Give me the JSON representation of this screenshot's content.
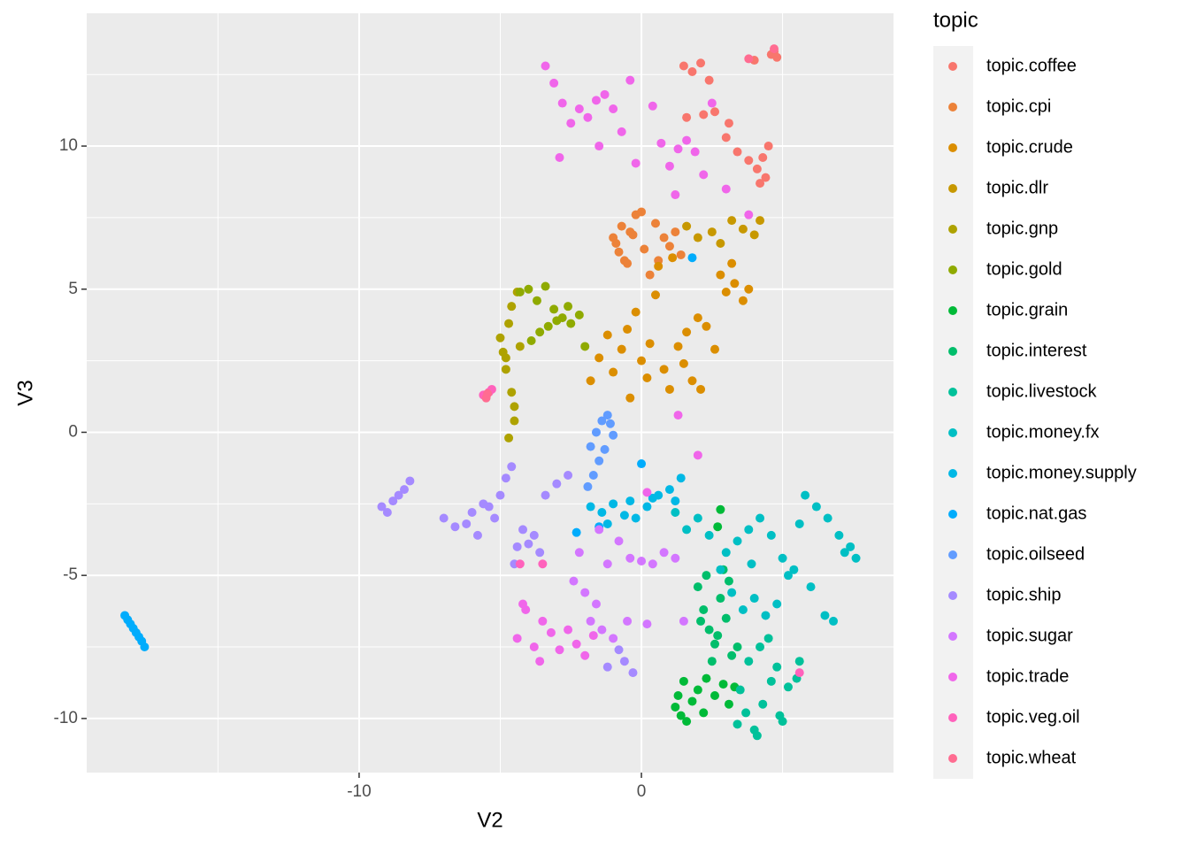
{
  "chart_data": {
    "type": "scatter",
    "x_label": "V2",
    "y_label": "V3",
    "legend_title": "topic",
    "xlim": [
      -19.65,
      8.93
    ],
    "ylim": [
      -11.89,
      14.64
    ],
    "xticks": [
      -10,
      0
    ],
    "yticks": [
      -10,
      -5,
      0,
      5,
      10
    ],
    "xminor": [
      -15,
      -5,
      5
    ],
    "yminor": [
      -7.5,
      -2.5,
      2.5,
      7.5,
      12.5
    ],
    "grid": true,
    "legend": "right",
    "series": [
      {
        "name": "topic.coffee",
        "color": "#F8766D",
        "x": [
          4.6,
          4.7,
          4.8,
          4.0,
          1.5,
          1.8,
          2.1,
          2.4,
          1.6,
          2.2,
          3.0,
          3.4,
          3.8,
          4.1,
          4.3,
          4.5,
          4.2,
          2.6,
          3.1,
          4.4
        ],
        "y": [
          13.2,
          13.3,
          13.1,
          13.0,
          12.8,
          12.6,
          12.9,
          12.3,
          11.0,
          11.1,
          10.3,
          9.8,
          9.5,
          9.2,
          9.6,
          10.0,
          8.7,
          11.2,
          10.8,
          8.9
        ]
      },
      {
        "name": "topic.cpi",
        "color": "#EC8239",
        "x": [
          -1.0,
          -0.8,
          -0.6,
          -0.4,
          -0.2,
          0.0,
          -0.9,
          -0.5,
          -0.3,
          0.5,
          0.8,
          1.0,
          1.2,
          0.6,
          -0.7,
          0.1,
          1.4,
          0.3
        ],
        "y": [
          6.8,
          6.3,
          6.0,
          7.0,
          7.6,
          7.7,
          6.6,
          5.9,
          6.9,
          7.3,
          6.8,
          6.5,
          7.0,
          6.0,
          7.2,
          6.4,
          6.2,
          5.5
        ]
      },
      {
        "name": "topic.crude",
        "color": "#DB8E00",
        "x": [
          -1.8,
          -1.5,
          -1.2,
          -1.0,
          -0.7,
          -0.5,
          -0.2,
          0.0,
          0.3,
          0.5,
          0.8,
          1.0,
          1.3,
          1.5,
          1.8,
          2.0,
          2.3,
          2.6,
          2.8,
          3.0,
          3.3,
          3.6,
          3.8,
          0.6,
          1.1,
          2.1,
          3.2,
          -0.4,
          0.2,
          1.6
        ],
        "y": [
          1.8,
          2.6,
          3.4,
          2.1,
          2.9,
          3.6,
          4.2,
          2.5,
          3.1,
          4.8,
          2.2,
          1.5,
          3.0,
          2.4,
          1.8,
          4.0,
          3.7,
          2.9,
          5.5,
          4.9,
          5.2,
          4.6,
          5.0,
          5.8,
          6.1,
          1.5,
          5.9,
          1.2,
          1.9,
          3.5
        ]
      },
      {
        "name": "topic.dlr",
        "color": "#C79800",
        "x": [
          1.6,
          2.0,
          2.5,
          2.8,
          3.2,
          3.6,
          4.0,
          4.2
        ],
        "y": [
          7.2,
          6.8,
          7.0,
          6.6,
          7.4,
          7.1,
          6.9,
          7.4
        ]
      },
      {
        "name": "topic.gnp",
        "color": "#AEA200",
        "x": [
          -5.0,
          -4.9,
          -4.8,
          -4.7,
          -4.6,
          -4.5,
          -4.6,
          -4.7,
          -4.5,
          -4.4,
          -4.8,
          -4.3
        ],
        "y": [
          3.3,
          2.8,
          2.2,
          3.8,
          4.4,
          0.9,
          1.4,
          -0.2,
          0.4,
          4.9,
          2.6,
          3.0
        ]
      },
      {
        "name": "topic.gold",
        "color": "#8FAA00",
        "x": [
          -4.3,
          -4.0,
          -3.7,
          -3.4,
          -3.1,
          -2.8,
          -2.5,
          -2.2,
          -3.6,
          -3.0,
          -2.6,
          -3.9,
          -2.0,
          -3.3
        ],
        "y": [
          4.9,
          5.0,
          4.6,
          5.1,
          4.3,
          4.0,
          3.8,
          4.1,
          3.5,
          3.9,
          4.4,
          3.2,
          3.0,
          3.7
        ]
      },
      {
        "name": "topic.grain",
        "color": "#00BA38",
        "x": [
          1.2,
          1.4,
          1.6,
          1.8,
          2.0,
          2.3,
          2.6,
          2.9,
          3.1,
          1.5,
          2.2,
          1.3,
          2.8,
          2.7,
          3.3
        ],
        "y": [
          -9.6,
          -9.9,
          -10.1,
          -9.4,
          -9.0,
          -8.6,
          -9.2,
          -8.8,
          -9.5,
          -8.7,
          -9.8,
          -9.2,
          -2.7,
          -3.3,
          -8.9
        ]
      },
      {
        "name": "topic.interest",
        "color": "#00BE6B",
        "x": [
          2.0,
          2.2,
          2.4,
          2.6,
          2.8,
          3.0,
          3.2,
          2.3,
          2.7,
          3.1,
          2.5,
          3.4,
          2.1,
          2.9
        ],
        "y": [
          -5.4,
          -6.2,
          -6.9,
          -7.4,
          -5.8,
          -6.5,
          -7.8,
          -5.0,
          -7.1,
          -5.2,
          -8.0,
          -7.5,
          -6.6,
          -4.8
        ]
      },
      {
        "name": "topic.livestock",
        "color": "#00C19A",
        "x": [
          3.4,
          3.7,
          4.0,
          4.3,
          4.6,
          4.9,
          5.2,
          5.5,
          3.8,
          4.2,
          4.5,
          4.8,
          5.0,
          5.6,
          3.5,
          4.1
        ],
        "y": [
          -10.2,
          -9.8,
          -10.4,
          -9.5,
          -8.7,
          -9.9,
          -8.9,
          -8.6,
          -8.0,
          -7.5,
          -7.2,
          -8.2,
          -10.1,
          -8.0,
          -9.0,
          -10.6
        ]
      },
      {
        "name": "topic.money.fx",
        "color": "#00BFC4",
        "x": [
          1.2,
          1.6,
          2.0,
          2.4,
          3.0,
          3.4,
          3.8,
          4.2,
          4.6,
          5.0,
          5.4,
          5.8,
          6.2,
          6.6,
          7.0,
          7.4,
          7.6,
          3.2,
          3.6,
          4.0,
          4.4,
          4.8,
          5.2,
          6.0,
          6.5,
          2.8,
          3.9,
          5.6,
          7.2,
          6.8
        ],
        "y": [
          -2.8,
          -3.4,
          -3.0,
          -3.6,
          -4.2,
          -3.8,
          -3.4,
          -3.0,
          -3.6,
          -4.4,
          -4.8,
          -2.2,
          -2.6,
          -3.0,
          -3.6,
          -4.0,
          -4.4,
          -5.6,
          -6.2,
          -5.8,
          -6.4,
          -6.0,
          -5.0,
          -5.4,
          -6.4,
          -4.8,
          -4.6,
          -3.2,
          -4.2,
          -6.6
        ]
      },
      {
        "name": "topic.money.supply",
        "color": "#00B8E5",
        "x": [
          -1.8,
          -1.4,
          -1.0,
          -0.6,
          -0.2,
          0.2,
          0.6,
          1.0,
          1.4,
          -1.2,
          -0.4,
          0.4,
          1.2
        ],
        "y": [
          -2.6,
          -2.8,
          -2.5,
          -2.9,
          -3.0,
          -2.6,
          -2.2,
          -2.0,
          -1.6,
          -3.2,
          -2.4,
          -2.3,
          -2.4
        ]
      },
      {
        "name": "topic.nat.gas",
        "color": "#00ACFC",
        "x": [
          -18.3,
          -18.2,
          -18.1,
          -18.0,
          -17.9,
          -17.8,
          -17.7,
          -17.6,
          1.8,
          0.0,
          -2.3,
          -1.5
        ],
        "y": [
          -6.4,
          -6.55,
          -6.7,
          -6.85,
          -7.0,
          -7.15,
          -7.3,
          -7.5,
          6.1,
          -1.1,
          -3.5,
          -3.3
        ]
      },
      {
        "name": "topic.oilseed",
        "color": "#619CFF",
        "x": [
          -1.8,
          -1.6,
          -1.4,
          -1.2,
          -1.0,
          -1.5,
          -1.3,
          -1.7,
          -1.1,
          -1.9
        ],
        "y": [
          -0.5,
          0.0,
          0.4,
          0.6,
          -0.1,
          -1.0,
          -0.6,
          -1.5,
          0.3,
          -1.9
        ]
      },
      {
        "name": "topic.ship",
        "color": "#A58AFF",
        "x": [
          -9.2,
          -9.0,
          -8.8,
          -8.6,
          -8.4,
          -8.2,
          -7.0,
          -6.6,
          -6.2,
          -5.8,
          -5.4,
          -5.0,
          -4.6,
          -4.4,
          -4.2,
          -3.8,
          -3.4,
          -3.0,
          -2.6,
          -4.5,
          -4.0,
          -3.6,
          -5.6,
          -6.0,
          -0.6,
          -0.3,
          -0.8,
          -1.2,
          -5.2,
          -4.8
        ],
        "y": [
          -2.6,
          -2.8,
          -2.4,
          -2.2,
          -2.0,
          -1.7,
          -3.0,
          -3.3,
          -3.2,
          -3.6,
          -2.6,
          -2.2,
          -1.2,
          -4.0,
          -3.4,
          -3.6,
          -2.2,
          -1.8,
          -1.5,
          -4.6,
          -3.9,
          -4.2,
          -2.5,
          -2.8,
          -8.0,
          -8.4,
          -7.6,
          -8.2,
          -3.0,
          -1.6
        ]
      },
      {
        "name": "topic.sugar",
        "color": "#D376FF",
        "x": [
          -2.4,
          -2.0,
          -1.6,
          -1.2,
          -0.8,
          -0.4,
          0.0,
          0.4,
          0.8,
          1.2,
          -1.8,
          -1.4,
          -1.0,
          -0.5,
          0.2,
          -2.2,
          -1.5,
          1.5
        ],
        "y": [
          -5.2,
          -5.6,
          -6.0,
          -4.6,
          -3.8,
          -4.4,
          -4.5,
          -4.6,
          -4.2,
          -4.4,
          -6.6,
          -6.9,
          -7.2,
          -6.6,
          -6.7,
          -4.2,
          -3.4,
          -6.6
        ]
      },
      {
        "name": "topic.trade",
        "color": "#F066EA",
        "x": [
          -3.4,
          -3.1,
          -2.8,
          -2.5,
          -2.2,
          -1.9,
          -1.6,
          -1.3,
          -1.0,
          -0.7,
          -0.4,
          0.4,
          0.7,
          1.0,
          1.3,
          1.6,
          1.9,
          2.2,
          2.5,
          -2.9,
          -1.5,
          -0.2,
          1.2,
          3.0,
          3.8,
          -4.4,
          -4.1,
          -3.8,
          -3.5,
          -3.2,
          -2.9,
          -2.6,
          -2.3,
          -2.0,
          -1.7,
          -4.2,
          -3.6,
          0.2,
          2.0,
          1.3
        ],
        "y": [
          12.8,
          12.2,
          11.5,
          10.8,
          11.3,
          11.0,
          11.6,
          11.8,
          11.3,
          10.5,
          12.3,
          11.4,
          10.1,
          9.3,
          9.9,
          10.2,
          9.8,
          9.0,
          11.5,
          9.6,
          10.0,
          9.4,
          8.3,
          8.5,
          7.6,
          -7.2,
          -6.2,
          -7.5,
          -6.6,
          -7.0,
          -7.6,
          -6.9,
          -7.4,
          -7.8,
          -7.1,
          -6.0,
          -8.0,
          -2.1,
          -0.8,
          0.6
        ]
      },
      {
        "name": "topic.veg.oil",
        "color": "#FF62BC",
        "x": [
          -5.4,
          -5.6,
          -5.3,
          -4.3,
          -3.5,
          5.6
        ],
        "y": [
          1.4,
          1.3,
          1.5,
          -4.6,
          -4.6,
          -8.4
        ]
      },
      {
        "name": "topic.wheat",
        "color": "#FF6C91",
        "x": [
          4.7,
          3.8,
          -5.45,
          -5.5
        ],
        "y": [
          13.4,
          13.05,
          1.35,
          1.2
        ]
      }
    ]
  }
}
